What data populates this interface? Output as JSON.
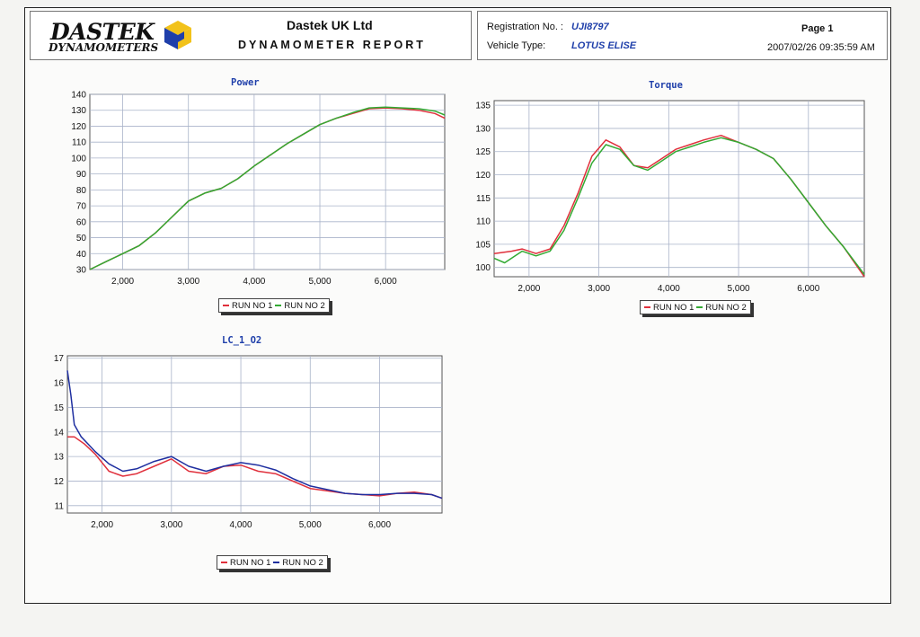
{
  "header": {
    "logo_line1": "DASTEK",
    "logo_line2": "DYNAMOMETERS",
    "company": "Dastek UK Ltd",
    "report_title": "DYNAMOMETER REPORT",
    "registration_label": "Registration No. :",
    "registration_value": "UJI8797",
    "vehicle_label": "Vehicle Type:",
    "vehicle_value": "LOTUS ELISE",
    "page": "Page 1",
    "timestamp": "2007/02/26 09:35:59 AM"
  },
  "colors": {
    "run1": "#e0303c",
    "run2_power_torque": "#33aa33",
    "run2_lc": "#1f2fa0",
    "grid": "#a9b3c9",
    "title": "#1f3faa"
  },
  "chart_data": [
    {
      "id": "power",
      "type": "line",
      "title": "Power",
      "xlim": [
        1500,
        6900
      ],
      "ylim": [
        30,
        140
      ],
      "xticks": [
        2000,
        3000,
        4000,
        5000,
        6000
      ],
      "xtick_labels": [
        "2,000",
        "3,000",
        "4,000",
        "5,000",
        "6,000"
      ],
      "yticks": [
        30,
        40,
        50,
        60,
        70,
        80,
        90,
        100,
        110,
        120,
        130,
        140
      ],
      "legend": "bottom",
      "series": [
        {
          "name": "RUN NO 1",
          "color": "#e0303c",
          "x": [
            1500,
            1750,
            2000,
            2250,
            2500,
            2750,
            3000,
            3250,
            3500,
            3750,
            4000,
            4250,
            4500,
            4750,
            5000,
            5250,
            5500,
            5750,
            6000,
            6250,
            6500,
            6750,
            6900
          ],
          "y": [
            30,
            35,
            40,
            45,
            53,
            63,
            73,
            78,
            81,
            87,
            95,
            102,
            109,
            115,
            121,
            125,
            128,
            131,
            131.5,
            131,
            130,
            128,
            125
          ]
        },
        {
          "name": "RUN NO 2",
          "color": "#33aa33",
          "x": [
            1500,
            1750,
            2000,
            2250,
            2500,
            2750,
            3000,
            3250,
            3500,
            3750,
            4000,
            4250,
            4500,
            4750,
            5000,
            5250,
            5500,
            5750,
            6000,
            6250,
            6500,
            6750,
            6900
          ],
          "y": [
            30,
            35,
            40,
            45,
            53,
            63,
            73,
            78,
            81,
            87,
            95,
            102,
            109,
            115,
            121,
            125,
            128.5,
            131.5,
            132,
            131.5,
            131,
            129.5,
            127
          ]
        }
      ],
      "legend_labels": [
        "RUN NO 1",
        "RUN NO 2"
      ]
    },
    {
      "id": "torque",
      "type": "line",
      "title": "Torque",
      "xlim": [
        1500,
        6800
      ],
      "ylim": [
        98,
        136
      ],
      "xticks": [
        2000,
        3000,
        4000,
        5000,
        6000
      ],
      "xtick_labels": [
        "2,000",
        "3,000",
        "4,000",
        "5,000",
        "6,000"
      ],
      "yticks": [
        100,
        105,
        110,
        115,
        120,
        125,
        130,
        135
      ],
      "legend": "bottom",
      "series": [
        {
          "name": "RUN NO 1",
          "color": "#e0303c",
          "x": [
            1500,
            1750,
            1900,
            2100,
            2300,
            2500,
            2700,
            2900,
            3100,
            3300,
            3500,
            3700,
            3900,
            4100,
            4300,
            4500,
            4750,
            5000,
            5250,
            5500,
            5750,
            6000,
            6250,
            6500,
            6800
          ],
          "y": [
            103,
            103.5,
            104,
            103,
            104,
            109,
            116,
            124,
            127.5,
            126,
            122,
            121.5,
            123.5,
            125.5,
            126.5,
            127.5,
            128.5,
            127,
            125.5,
            123.5,
            119,
            114,
            109,
            104.5,
            98
          ]
        },
        {
          "name": "RUN NO 2",
          "color": "#33aa33",
          "x": [
            1500,
            1650,
            1900,
            2100,
            2300,
            2500,
            2700,
            2900,
            3100,
            3300,
            3500,
            3700,
            3900,
            4100,
            4300,
            4500,
            4750,
            5000,
            5250,
            5500,
            5750,
            6000,
            6250,
            6500,
            6800
          ],
          "y": [
            102,
            101,
            103.5,
            102.5,
            103.5,
            108,
            115,
            122.5,
            126.5,
            125.5,
            122,
            121,
            123,
            125,
            126,
            127,
            128,
            127,
            125.5,
            123.5,
            119,
            114,
            109,
            104.5,
            98.5
          ]
        }
      ],
      "legend_labels": [
        "RUN NO 1",
        "RUN NO 2"
      ]
    },
    {
      "id": "lc_1_o2",
      "type": "line",
      "title": "LC_1_O2",
      "xlim": [
        1500,
        6900
      ],
      "ylim": [
        10.7,
        17.1
      ],
      "xticks": [
        2000,
        3000,
        4000,
        5000,
        6000
      ],
      "xtick_labels": [
        "2,000",
        "3,000",
        "4,000",
        "5,000",
        "6,000"
      ],
      "yticks": [
        11,
        12,
        13,
        14,
        15,
        16,
        17
      ],
      "legend": "bottom",
      "series": [
        {
          "name": "RUN NO 1",
          "color": "#e0303c",
          "x": [
            1500,
            1600,
            1750,
            1900,
            2100,
            2300,
            2500,
            2750,
            3000,
            3250,
            3500,
            3750,
            4000,
            4250,
            4500,
            4750,
            5000,
            5250,
            5500,
            5750,
            6000,
            6250,
            6500,
            6750,
            6900
          ],
          "y": [
            13.8,
            13.8,
            13.5,
            13.1,
            12.4,
            12.2,
            12.3,
            12.6,
            12.9,
            12.4,
            12.3,
            12.6,
            12.65,
            12.4,
            12.3,
            12.0,
            11.7,
            11.6,
            11.5,
            11.45,
            11.4,
            11.5,
            11.55,
            11.45,
            11.3
          ]
        },
        {
          "name": "RUN NO 2",
          "color": "#1f2fa0",
          "x": [
            1500,
            1550,
            1600,
            1700,
            1800,
            1900,
            2100,
            2300,
            2500,
            2750,
            3000,
            3250,
            3500,
            3750,
            4000,
            4250,
            4500,
            4750,
            5000,
            5250,
            5500,
            5750,
            6000,
            6250,
            6500,
            6750,
            6900
          ],
          "y": [
            16.5,
            15.5,
            14.3,
            13.8,
            13.5,
            13.2,
            12.7,
            12.4,
            12.5,
            12.8,
            13.0,
            12.6,
            12.4,
            12.6,
            12.75,
            12.65,
            12.45,
            12.1,
            11.8,
            11.65,
            11.5,
            11.45,
            11.45,
            11.5,
            11.5,
            11.45,
            11.3
          ]
        }
      ],
      "legend_labels": [
        "RUN NO 1",
        "RUN NO 2"
      ]
    }
  ]
}
